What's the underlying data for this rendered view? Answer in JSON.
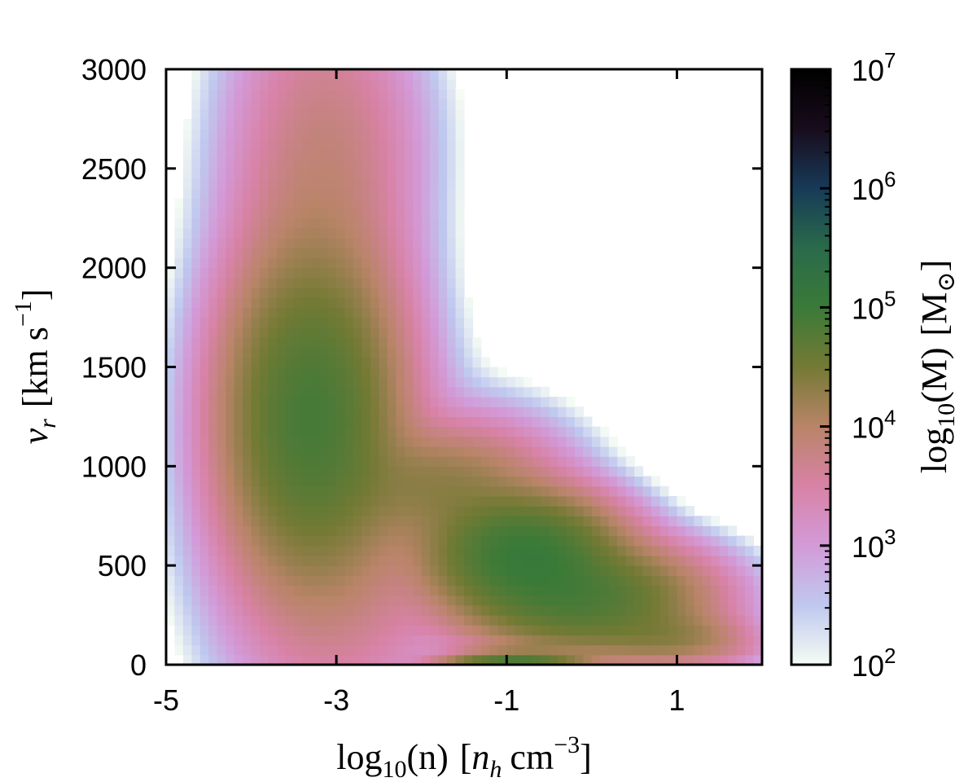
{
  "chart_data": {
    "type": "heatmap",
    "title": "",
    "x_axis": {
      "label_base": "log",
      "label_sub": "10",
      "label_arg": "(n)",
      "label_unit_open": "[",
      "label_unit_var": "n",
      "label_unit_var_sub": "h",
      "label_unit_text": "cm",
      "label_unit_exp": "−3",
      "label_unit_close": "]",
      "range": [
        -5,
        2
      ],
      "ticks": [
        {
          "value": -5,
          "label": "-5"
        },
        {
          "value": -3,
          "label": "-3"
        },
        {
          "value": -1,
          "label": "-1"
        },
        {
          "value": 1,
          "label": "1"
        }
      ]
    },
    "y_axis": {
      "label_var": "v",
      "label_sub": "r",
      "label_unit_open": "[",
      "label_unit_text": "km s",
      "label_unit_exp": "−1",
      "label_unit_close": "]",
      "range": [
        0,
        3000
      ],
      "ticks": [
        {
          "value": 0,
          "label": "0"
        },
        {
          "value": 500,
          "label": "500"
        },
        {
          "value": 1000,
          "label": "1000"
        },
        {
          "value": 1500,
          "label": "1500"
        },
        {
          "value": 2000,
          "label": "2000"
        },
        {
          "value": 2500,
          "label": "2500"
        },
        {
          "value": 3000,
          "label": "3000"
        }
      ]
    },
    "colorbar": {
      "label_base": "log",
      "label_sub": "10",
      "label_arg": "(M)",
      "label_unit": "[M",
      "label_unit_sub": "⊙",
      "label_unit_close": "]",
      "range_log10": [
        2,
        7
      ],
      "ticks": [
        {
          "value": 2,
          "base": "10",
          "exp": "2"
        },
        {
          "value": 3,
          "base": "10",
          "exp": "3"
        },
        {
          "value": 4,
          "base": "10",
          "exp": "4"
        },
        {
          "value": 5,
          "base": "10",
          "exp": "5"
        },
        {
          "value": 6,
          "base": "10",
          "exp": "6"
        },
        {
          "value": 7,
          "base": "10",
          "exp": "7"
        }
      ],
      "colormap": [
        "#f5fcf4",
        "#bfc8ef",
        "#d39ad8",
        "#d882a6",
        "#b98468",
        "#747a34",
        "#3a7a38",
        "#2a6a4a",
        "#173a58",
        "#180c1c",
        "#000000"
      ]
    },
    "grid": false,
    "cell_size": {
      "dx": 0.1,
      "dy": 50
    },
    "components": [
      {
        "x": -3.3,
        "y": 1250,
        "sx": 0.5,
        "sy": 400,
        "log10_mass": 4.85
      },
      {
        "x": -3.2,
        "y": 2100,
        "sx": 0.55,
        "sy": 700,
        "log10_mass": 3.9
      },
      {
        "x": -3.0,
        "y": 650,
        "sx": 0.7,
        "sy": 500,
        "log10_mass": 3.8
      },
      {
        "x": -0.8,
        "y": 560,
        "sx": 0.55,
        "sy": 150,
        "log10_mass": 5.0
      },
      {
        "x": -0.1,
        "y": 330,
        "sx": 0.7,
        "sy": 140,
        "log10_mass": 4.8
      },
      {
        "x": 0.9,
        "y": 140,
        "sx": 0.45,
        "sy": 70,
        "log10_mass": 4.2
      },
      {
        "x": -0.9,
        "y": 25,
        "sx": 0.4,
        "sy": 25,
        "log10_mass": 4.8
      },
      {
        "x": -1.8,
        "y": 900,
        "sx": 0.6,
        "sy": 150,
        "log10_mass": 4.2
      },
      {
        "x": -1.3,
        "y": 900,
        "sx": 0.6,
        "sy": 200,
        "log10_mass": 3.6
      },
      {
        "x": 1.5,
        "y": 80,
        "sx": 0.35,
        "sy": 60,
        "log10_mass": 3.3
      },
      {
        "x": -2.9,
        "y": 2700,
        "sx": 0.55,
        "sy": 300,
        "log10_mass": 3.1
      }
    ]
  }
}
